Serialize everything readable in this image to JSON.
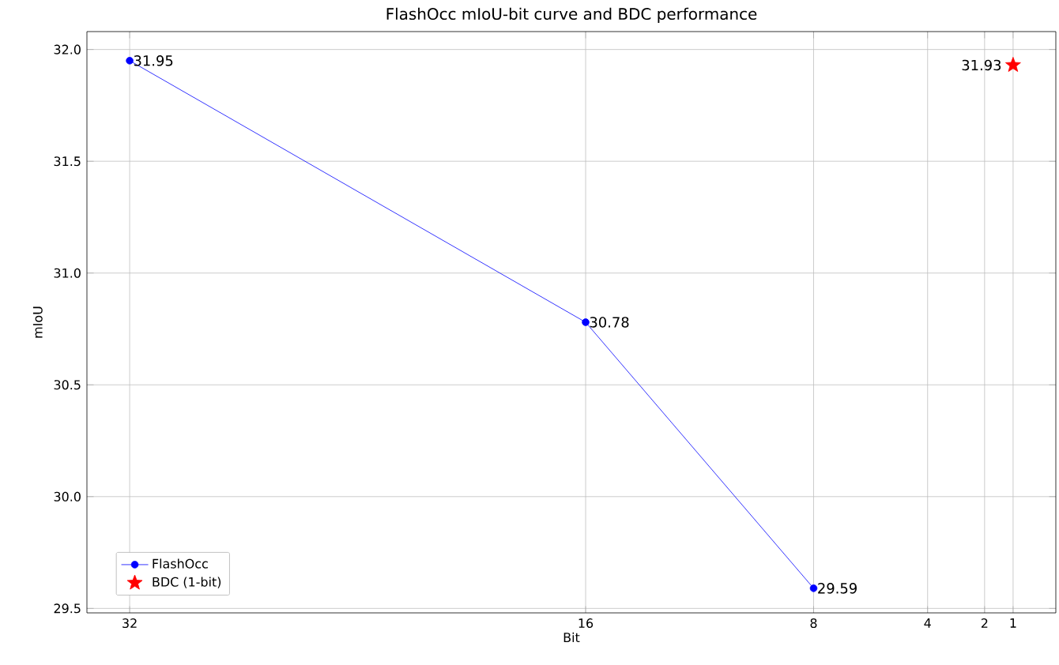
{
  "chart_data": {
    "type": "line",
    "title": "FlashOcc mIoU-bit curve and BDC performance",
    "xlabel": "Bit",
    "ylabel": "mIoU",
    "series": [
      {
        "name": "FlashOcc",
        "color": "#0000ff",
        "marker": "circle",
        "x": [
          32,
          16,
          8
        ],
        "values": [
          31.95,
          30.78,
          29.59
        ]
      },
      {
        "name": "BDC (1-bit)",
        "type": "scatter",
        "color": "#ff0000",
        "marker": "star",
        "x": [
          1
        ],
        "values": [
          31.93
        ]
      }
    ],
    "xlim": [
      33.5,
      -0.5
    ],
    "ylim": [
      29.48,
      32.08
    ],
    "xticks": [
      32,
      16,
      8,
      4,
      2,
      1
    ],
    "yticks": [
      29.5,
      {
        "value": 30.0,
        "label": "30.0"
      },
      30.5,
      {
        "value": 31.0,
        "label": "31.0"
      },
      31.5,
      {
        "value": 32.0,
        "label": "32.0"
      }
    ],
    "grid": true,
    "legend": "bottom left",
    "data_labels": true
  }
}
